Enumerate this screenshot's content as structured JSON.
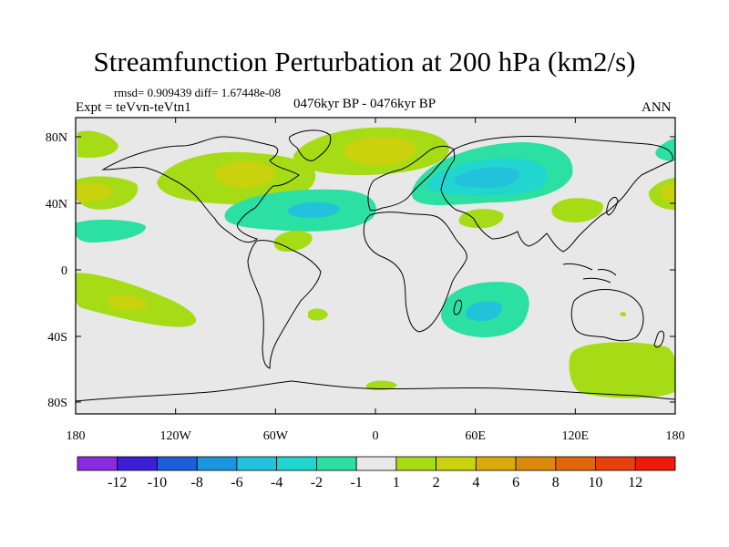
{
  "title": "Streamfunction Perturbation at 200 hPa (km2/s)",
  "stats": "rmsd= 0.909439 diff= 1.67448e-08",
  "experiment": "Expt = teVvn-teVtn1",
  "period": "0476kyr BP - 0476kyr BP",
  "season": "ANN",
  "lat_ticks": [
    "80N",
    "40N",
    "0",
    "40S",
    "80S"
  ],
  "lon_ticks": [
    "180",
    "120W",
    "60W",
    "0",
    "60E",
    "120E",
    "180"
  ],
  "colorbar": {
    "colors": [
      "#8a2be2",
      "#3a1fd6",
      "#1e5ed8",
      "#1c95e0",
      "#22c2dc",
      "#20d6cf",
      "#2be0a2",
      "#e8e8e8",
      "#a6dc16",
      "#c9d20c",
      "#d8aa0a",
      "#dc8a0a",
      "#e2660c",
      "#e8400c",
      "#ee1a0a"
    ],
    "labels": [
      "-12",
      "-10",
      "-8",
      "-6",
      "-4",
      "-2",
      "-1",
      "1",
      "2",
      "4",
      "6",
      "8",
      "10",
      "12"
    ]
  }
}
